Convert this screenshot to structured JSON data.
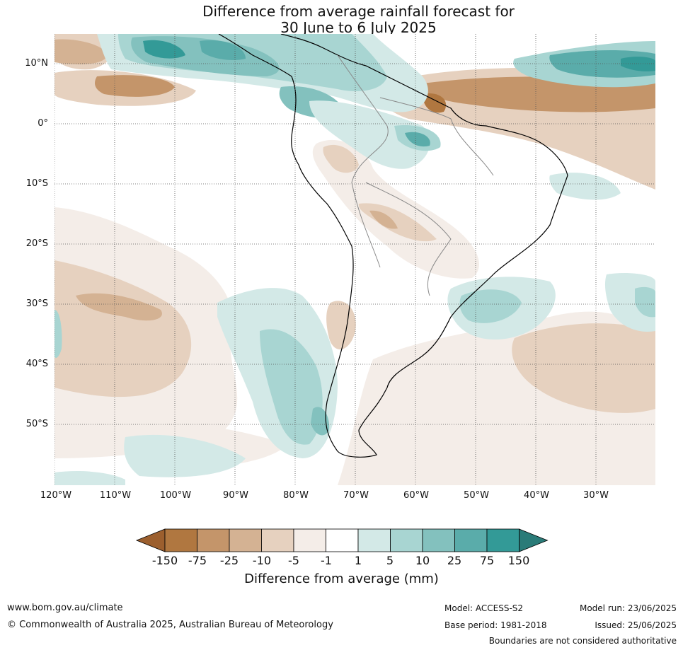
{
  "title_line1": "Difference from average rainfall forecast for",
  "title_line2": "30 June to 6 July 2025",
  "map": {
    "lat_labels": [
      "10°N",
      "0°",
      "10°S",
      "20°S",
      "30°S",
      "40°S",
      "50°S"
    ],
    "lon_labels": [
      "120°W",
      "110°W",
      "100°W",
      "90°W",
      "80°W",
      "70°W",
      "60°W",
      "50°W",
      "40°W",
      "30°W"
    ],
    "lon_range": [
      -120,
      -20
    ],
    "lat_range": [
      -60,
      15
    ],
    "gridlines": true
  },
  "legend": {
    "tick_labels": [
      "-150",
      "-75",
      "-25",
      "-10",
      "-5",
      "-1",
      "1",
      "5",
      "10",
      "25",
      "75",
      "150"
    ],
    "colors": [
      "#9c5f2e",
      "#b07740",
      "#c4956a",
      "#d4b293",
      "#e6d1bf",
      "#f4ede8",
      "#ffffff",
      "#d3e9e7",
      "#a8d5d2",
      "#83c1be",
      "#5aacaa",
      "#339a97",
      "#2a7b78"
    ],
    "label": "Difference from average (mm)"
  },
  "footer": {
    "url": "www.bom.gov.au/climate",
    "copyright": "© Commonwealth of Australia 2025, Australian Bureau of Meteorology",
    "model": "Model: ACCESS-S2",
    "base_period": "Base period: 1981-2018",
    "model_run": "Model run: 23/06/2025",
    "issued": "Issued: 25/06/2025",
    "disclaimer": "Boundaries are not considered authoritative"
  }
}
